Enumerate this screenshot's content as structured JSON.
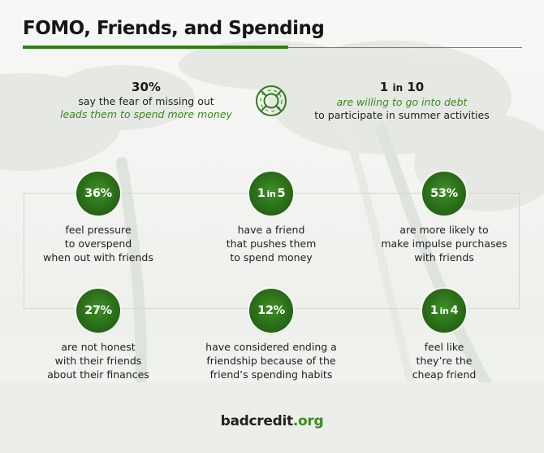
{
  "title": "FOMO, Friends, and Spending",
  "top_stats": {
    "left": {
      "value": "30%",
      "line1": "say the fear of missing out",
      "line2": "leads them to spend more money"
    },
    "right": {
      "value_num": "1",
      "value_in": "in",
      "value_den": "10",
      "line1": "are willing to go into debt",
      "line2": "to participate in summer activities"
    }
  },
  "stats": [
    {
      "badge": "36%",
      "lines": [
        "feel pressure",
        "to overspend",
        "when out with friends"
      ]
    },
    {
      "badge_num": "1",
      "badge_in": "in",
      "badge_den": "5",
      "lines": [
        "have a friend",
        "that pushes them",
        "to spend money"
      ]
    },
    {
      "badge": "53%",
      "lines": [
        "are more likely to",
        "make impulse purchases",
        "with friends"
      ]
    },
    {
      "badge": "27%",
      "lines": [
        "are not honest",
        "with their friends",
        "about their finances"
      ]
    },
    {
      "badge": "12%",
      "lines": [
        "have considered ending a",
        "friendship because of the",
        "friend’s spending habits"
      ]
    },
    {
      "badge_num": "1",
      "badge_in": "in",
      "badge_den": "4",
      "lines": [
        "feel like",
        "they’re the",
        "cheap friend"
      ]
    }
  ],
  "brand": {
    "part1": "badcredit",
    "part2": ".org"
  },
  "icons": {
    "center": "lifebuoy-icon"
  },
  "colors": {
    "accent": "#2f7d17",
    "badge": "#2a6d18",
    "text": "#222222"
  }
}
